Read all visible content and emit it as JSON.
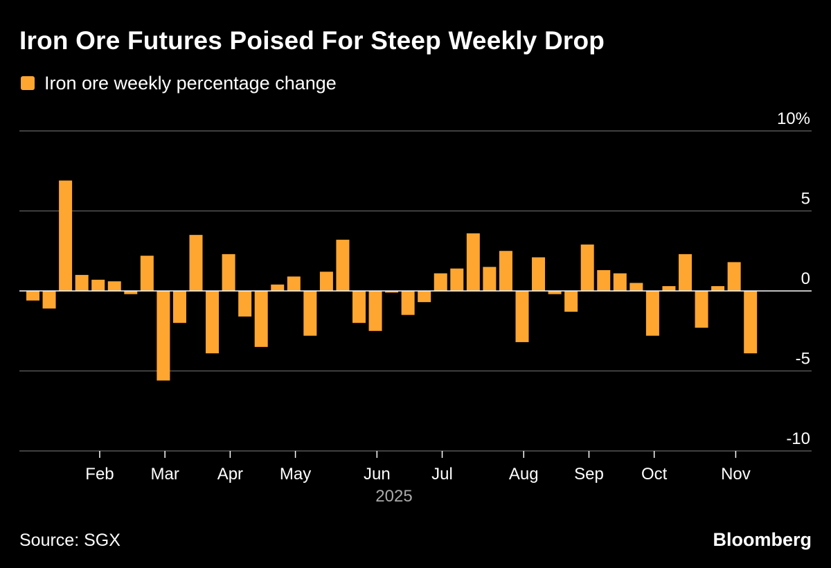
{
  "title": "Iron Ore Futures Poised For Steep Weekly Drop",
  "source": "Source: SGX",
  "brand": "Bloomberg",
  "colors": {
    "bar": "#FFA630",
    "background": "#000000",
    "grid": "#555555",
    "zero_line": "#FFFFFF",
    "axis_text": "#FFFFFF",
    "year_text": "#AAAAAA"
  },
  "chart_data": {
    "type": "bar",
    "legend": "Iron ore weekly percentage change",
    "legend_position": "top-left",
    "grid": true,
    "y_axis_side": "right",
    "ylim": [
      -10,
      10
    ],
    "y_ticks": [
      {
        "value": 10,
        "label": "10%"
      },
      {
        "value": 5,
        "label": "5"
      },
      {
        "value": 0,
        "label": "0"
      },
      {
        "value": -5,
        "label": "-5"
      },
      {
        "value": -10,
        "label": "-10"
      }
    ],
    "x_ticks": [
      {
        "index": 4.5,
        "label": "Feb"
      },
      {
        "index": 8.5,
        "label": "Mar"
      },
      {
        "index": 12.5,
        "label": "Apr"
      },
      {
        "index": 16.5,
        "label": "May"
      },
      {
        "index": 21.5,
        "label": "Jun"
      },
      {
        "index": 25.5,
        "label": "Jul"
      },
      {
        "index": 30.5,
        "label": "Aug"
      },
      {
        "index": 34.5,
        "label": "Sep"
      },
      {
        "index": 38.5,
        "label": "Oct"
      },
      {
        "index": 43.5,
        "label": "Nov"
      }
    ],
    "year_label": "2025",
    "values": [
      -0.6,
      -1.1,
      6.9,
      1.0,
      0.7,
      0.6,
      -0.2,
      2.2,
      -5.6,
      -2.0,
      3.5,
      -3.9,
      2.3,
      -1.6,
      -3.5,
      0.4,
      0.9,
      -2.8,
      1.2,
      3.2,
      -2.0,
      -2.5,
      -0.1,
      -1.5,
      -0.7,
      1.1,
      1.4,
      3.6,
      1.5,
      2.5,
      -3.2,
      2.1,
      -0.2,
      -1.3,
      2.9,
      1.3,
      1.1,
      0.5,
      -2.8,
      0.3,
      2.3,
      -2.3,
      0.3,
      1.8,
      -3.9
    ]
  }
}
